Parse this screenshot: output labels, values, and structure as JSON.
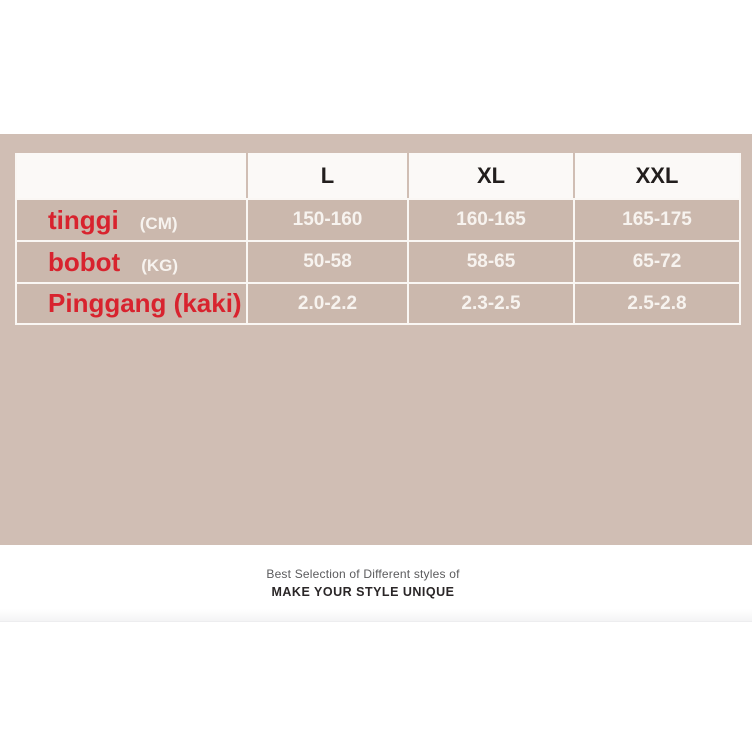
{
  "table": {
    "columns": [
      "",
      "L",
      "XL",
      "XXL"
    ],
    "rows": [
      {
        "label": "tinggi",
        "unit": "(CM)",
        "values": [
          "150-160",
          "160-165",
          "165-175"
        ]
      },
      {
        "label": "bobot",
        "unit": "(KG)",
        "values": [
          "50-58",
          "58-65",
          "65-72"
        ]
      },
      {
        "label": "Pinggang (kaki)",
        "unit": "",
        "values": [
          "2.0-2.2",
          "2.3-2.5",
          "2.5-2.8"
        ]
      }
    ]
  },
  "footer": {
    "line1": "Best Selection of Different styles of",
    "line2": "MAKE YOUR STYLE UNIQUE"
  },
  "colors": {
    "panel_bg": "#d0beb4",
    "cell_bg": "#cbb8ad",
    "header_bg": "#fbf9f7",
    "line_white": "#faf7f4",
    "label_red": "#d8232e",
    "value_text": "#f7f3ef",
    "header_text": "#221e1d",
    "footer_grey": "#5b5b5d",
    "footer_dark": "#2a2627"
  },
  "chart_data": {
    "type": "table",
    "title": "",
    "columns": [
      "",
      "L",
      "XL",
      "XXL"
    ],
    "rows": [
      [
        "tinggi (CM)",
        "150-160",
        "160-165",
        "165-175"
      ],
      [
        "bobot (KG)",
        "50-58",
        "58-65",
        "65-72"
      ],
      [
        "Pinggang (kaki)",
        "2.0-2.2",
        "2.3-2.5",
        "2.5-2.8"
      ]
    ]
  }
}
